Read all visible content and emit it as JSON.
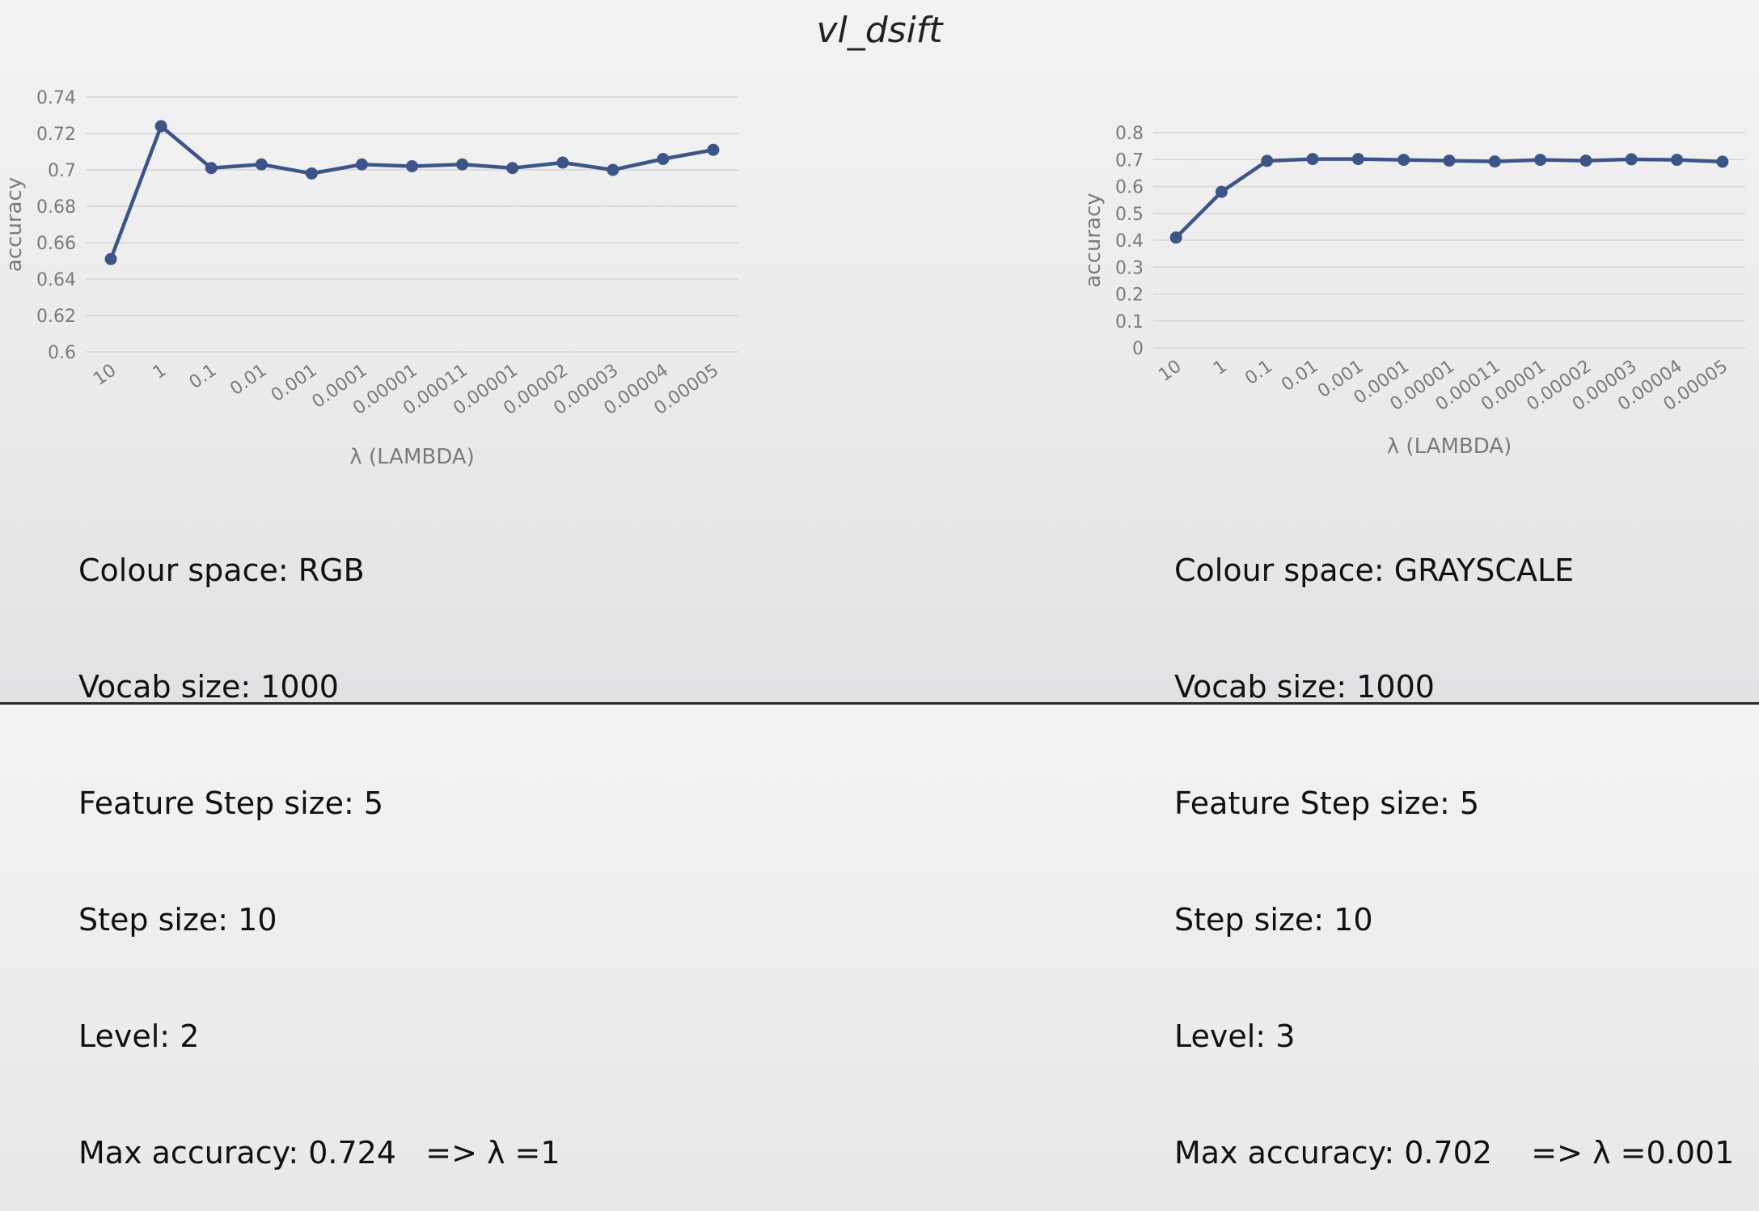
{
  "slide": {
    "title": "vl_dsift"
  },
  "chart_data": [
    {
      "type": "line",
      "ylabel": "accuracy",
      "xlabel": "λ (LAMBDA)",
      "categories": [
        "10",
        "1",
        "0.1",
        "0.01",
        "0.001",
        "0.0001",
        "0.00001",
        "0.00011",
        "0.00001",
        "0.00002",
        "0.00003",
        "0.00004",
        "0.00005"
      ],
      "series": [
        {
          "values": [
            0.651,
            0.724,
            0.701,
            0.703,
            0.698,
            0.703,
            0.702,
            0.703,
            0.701,
            0.704,
            0.7,
            0.706,
            0.711
          ]
        }
      ],
      "ylim": [
        0.6,
        0.74
      ],
      "yticks": [
        "0.6",
        "0.62",
        "0.64",
        "0.66",
        "0.68",
        "0.7",
        "0.72",
        "0.74"
      ],
      "grid": true,
      "color": "#3d5488"
    },
    {
      "type": "line",
      "ylabel": "accuracy",
      "xlabel": "λ (LAMBDA)",
      "categories": [
        "10",
        "1",
        "0.1",
        "0.01",
        "0.001",
        "0.0001",
        "0.00001",
        "0.00011",
        "0.00001",
        "0.00002",
        "0.00003",
        "0.00004",
        "0.00005"
      ],
      "series": [
        {
          "values": [
            0.41,
            0.58,
            0.695,
            0.702,
            0.702,
            0.699,
            0.696,
            0.693,
            0.699,
            0.696,
            0.701,
            0.699,
            0.692
          ]
        }
      ],
      "ylim": [
        0,
        0.8
      ],
      "yticks": [
        "0",
        "0.1",
        "0.2",
        "0.3",
        "0.4",
        "0.5",
        "0.6",
        "0.7",
        "0.8"
      ],
      "grid": true,
      "color": "#3d5488"
    }
  ],
  "info_left": {
    "colour_space": "Colour space: RGB",
    "vocab_size": "Vocab size: 1000",
    "feature_step": "Feature Step size: 5",
    "step_size": "Step size: 10",
    "level": "Level: 2",
    "max_accuracy": "Max accuracy: 0.724   => λ =1"
  },
  "info_right": {
    "colour_space": "Colour space: GRAYSCALE",
    "vocab_size": "Vocab size: 1000",
    "feature_step": "Feature Step size: 5",
    "step_size": "Step size: 10",
    "level": "Level: 3",
    "max_accuracy": "Max accuracy: 0.702    => λ =0.001"
  }
}
